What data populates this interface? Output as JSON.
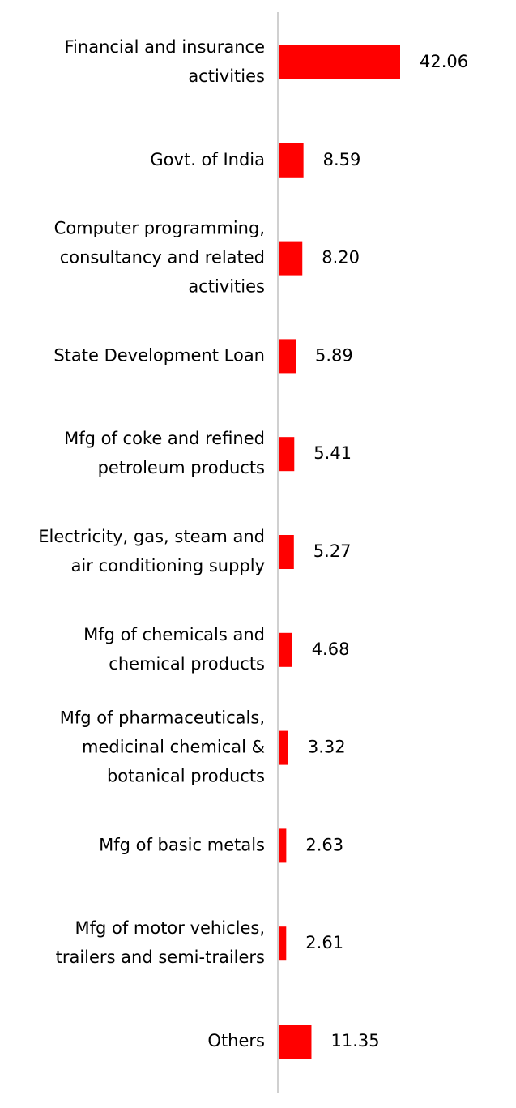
{
  "chart_data": {
    "type": "bar",
    "orientation": "horizontal",
    "categories": [
      [
        "Financial and insurance",
        "activities"
      ],
      [
        "Govt. of India"
      ],
      [
        "Computer programming,",
        "consultancy and related",
        "activities"
      ],
      [
        "State Development Loan"
      ],
      [
        "Mfg of coke and refined",
        "petroleum products"
      ],
      [
        "Electricity, gas, steam and",
        "air conditioning supply"
      ],
      [
        "Mfg of chemicals and",
        "chemical products"
      ],
      [
        "Mfg of pharmaceuticals,",
        "medicinal chemical &",
        "botanical products"
      ],
      [
        "Mfg of basic metals"
      ],
      [
        "Mfg of motor vehicles,",
        "trailers and semi-trailers"
      ],
      [
        "Others"
      ]
    ],
    "values": [
      42.06,
      8.59,
      8.2,
      5.89,
      5.41,
      5.27,
      4.68,
      3.32,
      2.63,
      2.61,
      11.35
    ],
    "value_labels": [
      "42.06",
      "8.59",
      "8.20",
      "5.89",
      "5.41",
      "5.27",
      "4.68",
      "3.32",
      "2.63",
      "2.61",
      "11.35"
    ],
    "title": "",
    "xlabel": "",
    "ylabel": "",
    "xlim": [
      0,
      42.06
    ],
    "grid": false,
    "legend": "none",
    "bar_color": "#ff0000",
    "axis_color": "#d0d0d0"
  }
}
